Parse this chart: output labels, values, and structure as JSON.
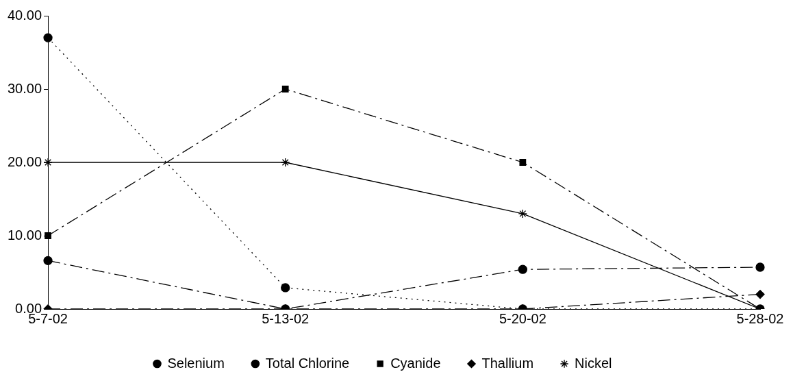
{
  "chart_data": {
    "type": "line",
    "categories": [
      "5-7-02",
      "5-13-02",
      "5-20-02",
      "5-28-02"
    ],
    "series": [
      {
        "name": "Selenium",
        "color": "#000000",
        "values": [
          6.6,
          0,
          5.4,
          5.7
        ],
        "marker": "circle",
        "line_style": "dashed"
      },
      {
        "name": "Total Chlorine",
        "color": "#000000",
        "values": [
          37,
          2.9,
          0,
          0
        ],
        "marker": "circle",
        "line_style": "dotted"
      },
      {
        "name": "Cyanide",
        "color": "#000000",
        "values": [
          10,
          30,
          20,
          0
        ],
        "marker": "square",
        "line_style": "dashed"
      },
      {
        "name": "Thallium",
        "color": "#000000",
        "values": [
          0,
          0,
          0,
          2
        ],
        "marker": "diamond",
        "line_style": "dashed"
      },
      {
        "name": "Nickel",
        "color": "#000000",
        "values": [
          20,
          20,
          13,
          0
        ],
        "marker": "cross",
        "line_style": "solid"
      }
    ],
    "ylim": [
      0,
      40
    ],
    "yticks": [
      {
        "value": 0,
        "label": "0.00"
      },
      {
        "value": 10,
        "label": "10.00"
      },
      {
        "value": 20,
        "label": "20.00"
      },
      {
        "value": 30,
        "label": "30.00"
      },
      {
        "value": 40,
        "label": "40.00"
      }
    ],
    "grid": false,
    "legend": "bottom"
  }
}
